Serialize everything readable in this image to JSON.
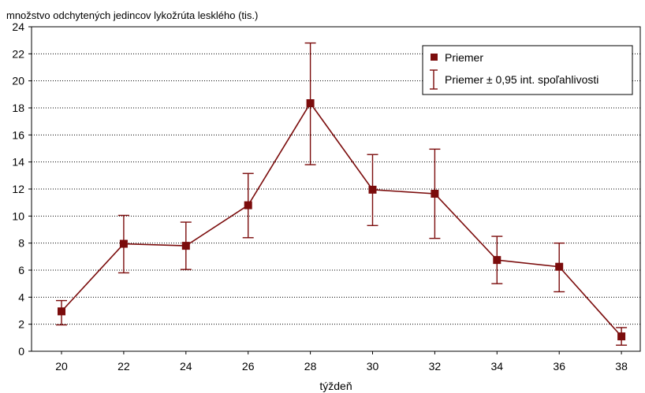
{
  "chart_data": {
    "type": "line",
    "ylabel": "množstvo odchytených jedincov lykožrúta lesklého (tis.)",
    "xlabel": "týždeň",
    "categories": [
      "20",
      "22",
      "24",
      "26",
      "28",
      "30",
      "32",
      "34",
      "36",
      "38"
    ],
    "series": [
      {
        "name": "Priemer",
        "values": [
          2.95,
          7.95,
          7.8,
          10.8,
          18.35,
          11.95,
          11.65,
          6.75,
          6.25,
          1.1
        ],
        "ci_lower": [
          1.95,
          5.8,
          6.05,
          8.4,
          13.8,
          9.3,
          8.35,
          5.0,
          4.4,
          0.45
        ],
        "ci_upper": [
          3.75,
          10.05,
          9.55,
          13.15,
          22.8,
          14.55,
          14.95,
          8.5,
          8.0,
          1.75
        ]
      }
    ],
    "error_legend": "Priemer ± 0,95 int. spoľahlivosti",
    "yticks": [
      "0",
      "2",
      "4",
      "6",
      "8",
      "10",
      "12",
      "14",
      "16",
      "18",
      "20",
      "22",
      "24"
    ],
    "ylim": [
      0,
      24
    ],
    "grid": "horizontal dotted",
    "legend_position": "top-right",
    "colors": {
      "series": "#7b0c0c",
      "axis": "#000000",
      "grid": "#000000"
    }
  }
}
